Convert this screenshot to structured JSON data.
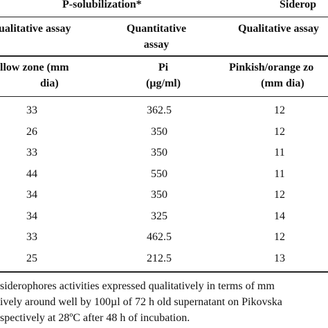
{
  "table": {
    "group_headers": {
      "p_solubilization": "P-solubilization*",
      "siderophores": "Siderop"
    },
    "sub_headers": {
      "col1": "ualitative assay",
      "col2_line1": "Quantitative",
      "col2_line2": "assay",
      "col3": "Qualitative assay"
    },
    "unit_headers": {
      "col1_line1": "llow zone (mm",
      "col1_line2": "dia)",
      "col2_line1": "Pi",
      "col2_line2": "(µg/ml)",
      "col3_line1": "Pinkish/orange zo",
      "col3_line2": "(mm dia)"
    },
    "rows": [
      {
        "zone": "33",
        "pi": "362.5",
        "sid": "12"
      },
      {
        "zone": "26",
        "pi": "350",
        "sid": "12"
      },
      {
        "zone": "33",
        "pi": "350",
        "sid": "11"
      },
      {
        "zone": "44",
        "pi": "550",
        "sid": "11"
      },
      {
        "zone": "34",
        "pi": "350",
        "sid": "12"
      },
      {
        "zone": "34",
        "pi": "325",
        "sid": "14"
      },
      {
        "zone": "33",
        "pi": "462.5",
        "sid": "12"
      },
      {
        "zone": "25",
        "pi": "212.5",
        "sid": "13"
      }
    ],
    "footnote": {
      "line1": "siderophores activities expressed qualitatively in terms of mm",
      "line2": "ively around well by 100µl of 72 h old supernatant on Pikovska",
      "line3": "spectively at 28ºC after 48 h of incubation."
    }
  }
}
